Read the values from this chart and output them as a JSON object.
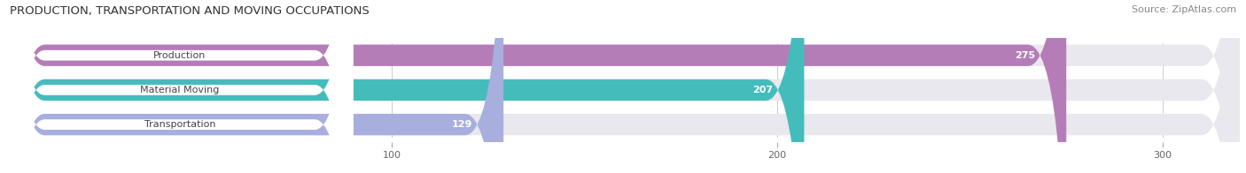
{
  "title": "PRODUCTION, TRANSPORTATION AND MOVING OCCUPATIONS",
  "source": "Source: ZipAtlas.com",
  "categories": [
    "Production",
    "Material Moving",
    "Transportation"
  ],
  "values": [
    275,
    207,
    129
  ],
  "bar_colors": [
    "#b57db8",
    "#45bcbc",
    "#a8aede"
  ],
  "bar_bg_color": "#e8e8ee",
  "label_bg_color": "#ffffff",
  "xlim_max": 320,
  "xticks": [
    100,
    200,
    300
  ],
  "figsize": [
    14.06,
    1.96
  ],
  "dpi": 100,
  "title_fontsize": 9.5,
  "label_fontsize": 8,
  "value_fontsize": 8,
  "source_fontsize": 8,
  "tick_fontsize": 8
}
